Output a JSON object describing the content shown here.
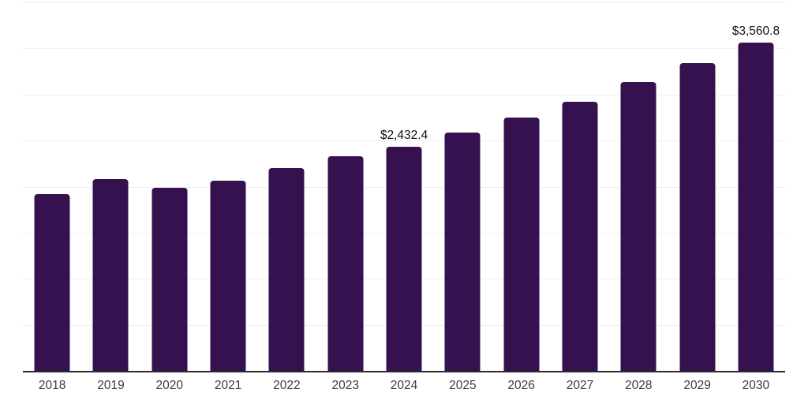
{
  "chart_data": {
    "type": "bar",
    "title": "",
    "xlabel": "",
    "ylabel": "",
    "categories": [
      "2018",
      "2019",
      "2020",
      "2021",
      "2022",
      "2023",
      "2024",
      "2025",
      "2026",
      "2027",
      "2028",
      "2029",
      "2030"
    ],
    "values": [
      1918,
      2081,
      1987,
      2064,
      2201,
      2330,
      2432.4,
      2587,
      2750,
      2921,
      3135,
      3340,
      3560.8
    ],
    "point_labels": [
      "",
      "",
      "",
      "",
      "",
      "",
      "$2,432.4",
      "",
      "",
      "",
      "",
      "",
      "$3,560.8"
    ],
    "ylim": [
      0,
      4000
    ],
    "gridline_step": 500,
    "grid": "horizontal",
    "legend_position": "none",
    "colors": {
      "bar": "#35114f",
      "axis_line": "#2b2b2b",
      "gridline": "#f0eff0",
      "tick_label": "#3d3d3d",
      "data_label": "#111111",
      "background": "#ffffff"
    }
  }
}
